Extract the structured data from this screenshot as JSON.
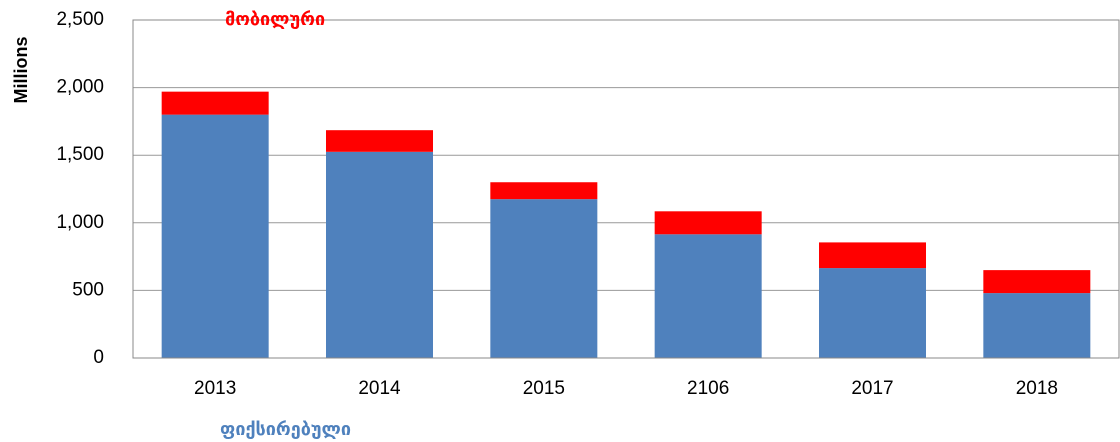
{
  "chart_data": {
    "type": "stacked_bar",
    "y_label": "Millions",
    "categories": [
      "2013",
      "2014",
      "2015",
      "2106",
      "2017",
      "2018"
    ],
    "series": [
      {
        "name": "ფიქსირებული",
        "color": "#4f81bd",
        "values": [
          1800,
          1525,
          1175,
          915,
          665,
          480
        ]
      },
      {
        "name": "მობილური",
        "color": "#ff0000",
        "values": [
          170,
          160,
          125,
          170,
          190,
          170
        ]
      }
    ],
    "ylim": [
      0,
      2500
    ],
    "yticks": [
      0,
      500,
      {
        "value": 1000,
        "label": "1,000"
      },
      {
        "value": 1500,
        "label": "1,500"
      },
      {
        "value": 2000,
        "label": "2,000"
      },
      {
        "value": 2500,
        "label": "2,500"
      }
    ],
    "grid": true
  }
}
